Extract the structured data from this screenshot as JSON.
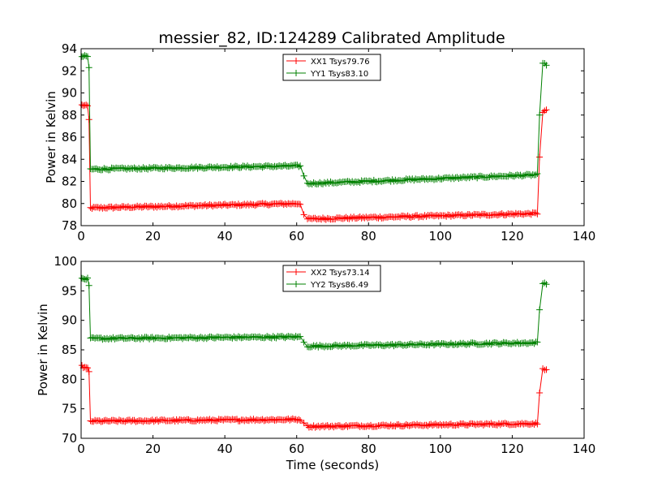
{
  "title": "messier_82, ID:124289 Calibrated Amplitude",
  "chart_data": [
    {
      "type": "line",
      "ylabel": "Power in Kelvin",
      "xlabel": "",
      "xlim": [
        0,
        140
      ],
      "ylim": [
        78,
        94
      ],
      "xticks": [
        0,
        20,
        40,
        60,
        80,
        100,
        120,
        140
      ],
      "yticks": [
        78,
        80,
        82,
        84,
        86,
        88,
        90,
        92,
        94
      ],
      "legend_position": "top-center",
      "series": [
        {
          "name": "XX1 Tsys79.76",
          "color": "#ff0000",
          "segments": [
            {
              "x0": 0.2,
              "x1": 1.8,
              "v0": 88.9,
              "v1": 88.8,
              "n": 5
            },
            {
              "x0": 2.6,
              "x1": 61.0,
              "v0": 79.6,
              "v1": 80.0,
              "n": 140
            },
            {
              "x0": 63.0,
              "x1": 127.0,
              "v0": 78.6,
              "v1": 79.1,
              "n": 150
            },
            {
              "x0": 128.5,
              "x1": 129.5,
              "v0": 88.3,
              "v1": 88.4,
              "n": 3
            }
          ],
          "transitions": [
            {
              "x": 2.2,
              "v": 87.6
            },
            {
              "x": 62.0,
              "v": 79.0
            },
            {
              "x": 127.6,
              "v": 84.2
            }
          ]
        },
        {
          "name": "YY1 Tsys83.10",
          "color": "#008000",
          "segments": [
            {
              "x0": 0.2,
              "x1": 1.8,
              "v0": 93.3,
              "v1": 93.3,
              "n": 5
            },
            {
              "x0": 2.6,
              "x1": 61.0,
              "v0": 83.1,
              "v1": 83.4,
              "n": 140
            },
            {
              "x0": 63.0,
              "x1": 127.0,
              "v0": 81.8,
              "v1": 82.6,
              "n": 150
            },
            {
              "x0": 128.5,
              "x1": 129.5,
              "v0": 92.6,
              "v1": 92.6,
              "n": 3
            }
          ],
          "transitions": [
            {
              "x": 2.2,
              "v": 92.3
            },
            {
              "x": 62.0,
              "v": 82.5
            },
            {
              "x": 127.6,
              "v": 88.0
            }
          ]
        }
      ]
    },
    {
      "type": "line",
      "ylabel": "Power in Kelvin",
      "xlabel": "Time (seconds)",
      "xlim": [
        0,
        140
      ],
      "ylim": [
        70,
        100
      ],
      "xticks": [
        0,
        20,
        40,
        60,
        80,
        100,
        120,
        140
      ],
      "yticks": [
        70,
        75,
        80,
        85,
        90,
        95,
        100
      ],
      "legend_position": "top-center",
      "series": [
        {
          "name": "XX2 Tsys73.14",
          "color": "#ff0000",
          "segments": [
            {
              "x0": 0.2,
              "x1": 1.8,
              "v0": 82.2,
              "v1": 81.8,
              "n": 5
            },
            {
              "x0": 2.6,
              "x1": 61.0,
              "v0": 72.9,
              "v1": 73.2,
              "n": 140
            },
            {
              "x0": 63.0,
              "x1": 127.0,
              "v0": 72.0,
              "v1": 72.5,
              "n": 150
            },
            {
              "x0": 128.5,
              "x1": 129.5,
              "v0": 81.7,
              "v1": 81.8,
              "n": 3
            }
          ],
          "transitions": [
            {
              "x": 2.2,
              "v": 81.3
            },
            {
              "x": 62.0,
              "v": 72.6
            },
            {
              "x": 127.6,
              "v": 77.7
            }
          ]
        },
        {
          "name": "YY2 Tsys86.49",
          "color": "#008000",
          "segments": [
            {
              "x0": 0.2,
              "x1": 1.8,
              "v0": 97.0,
              "v1": 97.0,
              "n": 5
            },
            {
              "x0": 2.6,
              "x1": 61.0,
              "v0": 86.9,
              "v1": 87.2,
              "n": 140
            },
            {
              "x0": 63.0,
              "x1": 127.0,
              "v0": 85.6,
              "v1": 86.2,
              "n": 150
            },
            {
              "x0": 128.5,
              "x1": 129.5,
              "v0": 96.3,
              "v1": 96.3,
              "n": 3
            }
          ],
          "transitions": [
            {
              "x": 2.2,
              "v": 95.9
            },
            {
              "x": 62.0,
              "v": 86.3
            },
            {
              "x": 127.6,
              "v": 91.8
            }
          ]
        }
      ]
    }
  ]
}
